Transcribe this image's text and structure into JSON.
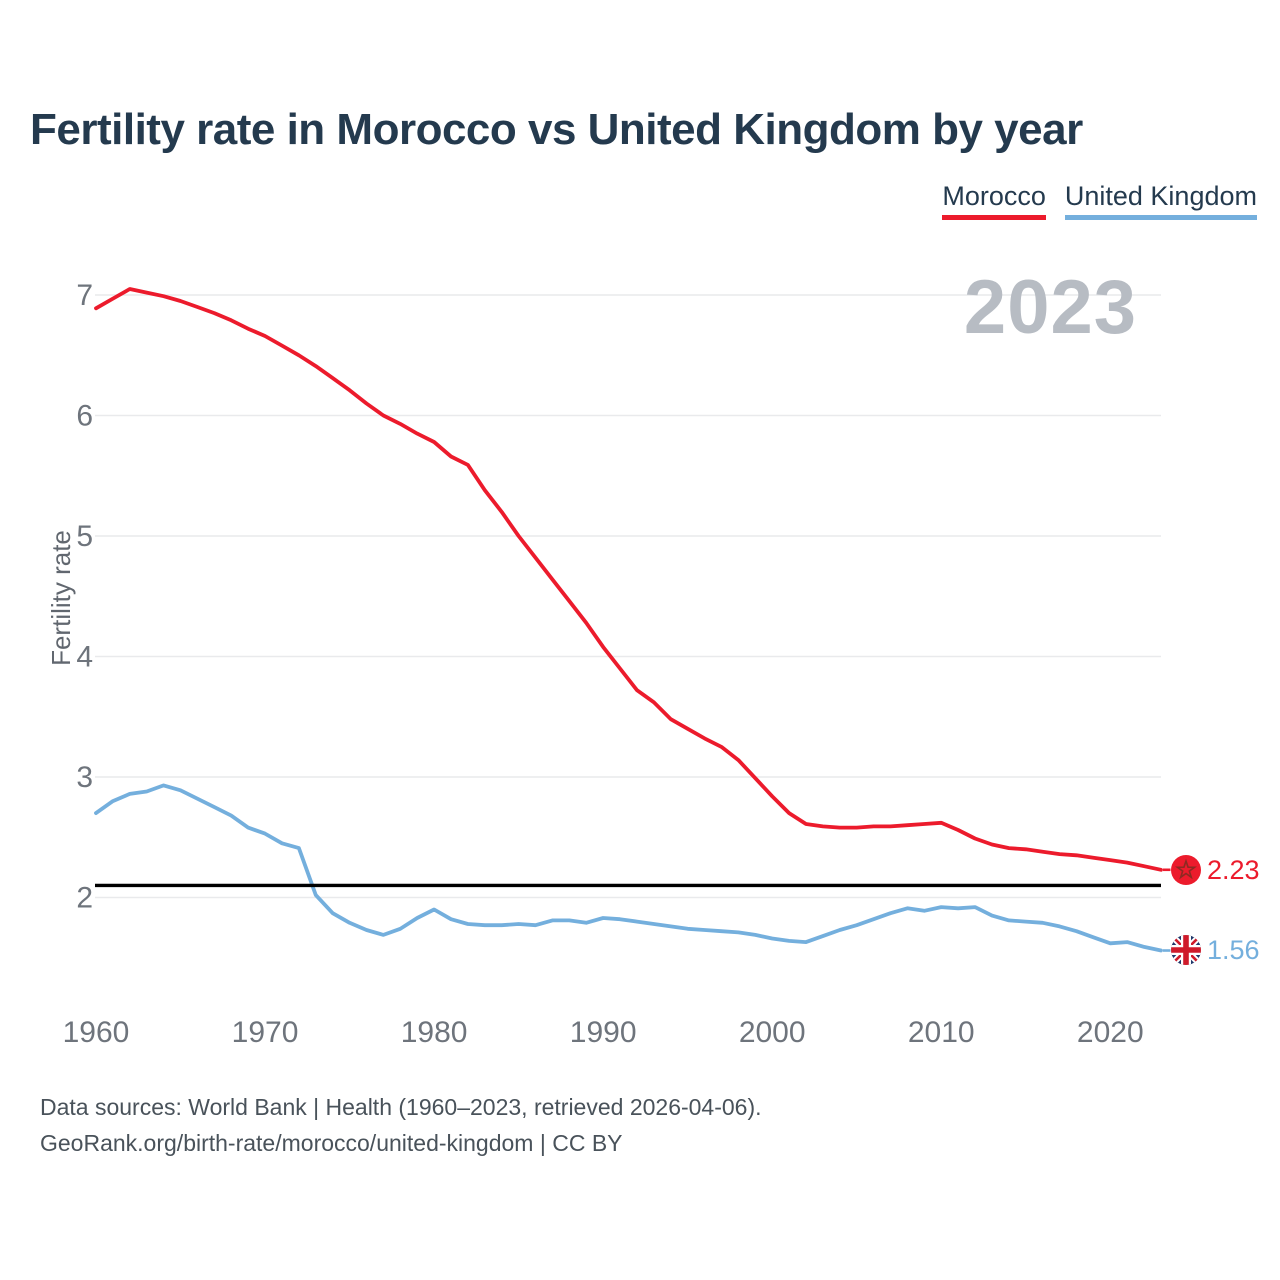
{
  "title": "Fertility rate in Morocco vs United Kingdom by year",
  "watermark": "2023",
  "legend": [
    {
      "label": "Morocco",
      "color": "#ec1b2c"
    },
    {
      "label": "United Kingdom",
      "color": "#74afdd"
    }
  ],
  "footer": {
    "line1": "Data sources: World Bank | Health (1960–2023, retrieved 2026-04-06).",
    "line2": "GeoRank.org/birth-rate/morocco/united-kingdom | CC BY"
  },
  "chart_data": {
    "type": "line",
    "title": "Fertility rate in Morocco vs United Kingdom by year",
    "xlabel": "",
    "ylabel": "Fertility rate",
    "xlim": [
      1960,
      2023
    ],
    "ylim": [
      1.45,
      7.2
    ],
    "x_ticks": [
      1960,
      1970,
      1980,
      1990,
      2000,
      2010,
      2020
    ],
    "y_ticks": [
      2,
      3,
      4,
      5,
      6,
      7
    ],
    "grid": "horizontal",
    "legend_position": "top-right",
    "reference_line": {
      "value": 2.1,
      "color": "#000000"
    },
    "x": [
      1960,
      1961,
      1962,
      1963,
      1964,
      1965,
      1966,
      1967,
      1968,
      1969,
      1970,
      1971,
      1972,
      1973,
      1974,
      1975,
      1976,
      1977,
      1978,
      1979,
      1980,
      1981,
      1982,
      1983,
      1984,
      1985,
      1986,
      1987,
      1988,
      1989,
      1990,
      1991,
      1992,
      1993,
      1994,
      1995,
      1996,
      1997,
      1998,
      1999,
      2000,
      2001,
      2002,
      2003,
      2004,
      2005,
      2006,
      2007,
      2008,
      2009,
      2010,
      2011,
      2012,
      2013,
      2014,
      2015,
      2016,
      2017,
      2018,
      2019,
      2020,
      2021,
      2022,
      2023
    ],
    "series": [
      {
        "name": "Morocco",
        "color": "#ec1b2c",
        "end_label": "2.23",
        "end_value": 2.23,
        "values": [
          6.89,
          6.97,
          7.05,
          7.02,
          6.99,
          6.95,
          6.9,
          6.85,
          6.79,
          6.72,
          6.66,
          6.58,
          6.5,
          6.41,
          6.31,
          6.21,
          6.1,
          6.0,
          5.93,
          5.85,
          5.78,
          5.66,
          5.59,
          5.38,
          5.2,
          5.0,
          4.82,
          4.64,
          4.46,
          4.28,
          4.08,
          3.9,
          3.72,
          3.62,
          3.48,
          3.4,
          3.32,
          3.25,
          3.14,
          2.99,
          2.84,
          2.7,
          2.61,
          2.59,
          2.58,
          2.58,
          2.59,
          2.59,
          2.6,
          2.61,
          2.62,
          2.56,
          2.49,
          2.44,
          2.41,
          2.4,
          2.38,
          2.36,
          2.35,
          2.33,
          2.31,
          2.29,
          2.26,
          2.23
        ]
      },
      {
        "name": "United Kingdom",
        "color": "#74afdd",
        "end_label": "1.56",
        "end_value": 1.56,
        "values": [
          2.7,
          2.8,
          2.86,
          2.88,
          2.93,
          2.89,
          2.82,
          2.75,
          2.68,
          2.58,
          2.53,
          2.45,
          2.41,
          2.02,
          1.87,
          1.79,
          1.73,
          1.69,
          1.74,
          1.83,
          1.9,
          1.82,
          1.78,
          1.77,
          1.77,
          1.78,
          1.77,
          1.81,
          1.81,
          1.79,
          1.83,
          1.82,
          1.8,
          1.78,
          1.76,
          1.74,
          1.73,
          1.72,
          1.71,
          1.69,
          1.66,
          1.64,
          1.63,
          1.68,
          1.73,
          1.77,
          1.82,
          1.87,
          1.91,
          1.89,
          1.92,
          1.91,
          1.92,
          1.85,
          1.81,
          1.8,
          1.79,
          1.76,
          1.72,
          1.67,
          1.62,
          1.63,
          1.59,
          1.56
        ]
      }
    ]
  }
}
